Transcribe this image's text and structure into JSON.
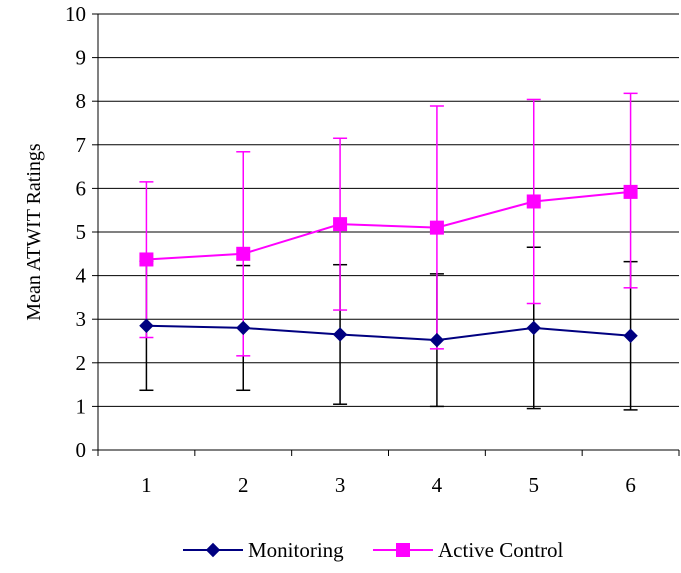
{
  "chart_data": {
    "type": "line",
    "title": "",
    "xlabel": "",
    "ylabel": "Mean ATWIT Ratings",
    "categories": [
      "1",
      "2",
      "3",
      "4",
      "5",
      "6"
    ],
    "ylim": [
      0,
      10
    ],
    "yticks": [
      "0",
      "1",
      "2",
      "3",
      "4",
      "5",
      "6",
      "7",
      "8",
      "9",
      "10"
    ],
    "grid": true,
    "legend_position": "bottom",
    "error_bars": true,
    "series": [
      {
        "name": "Monitoring",
        "color": "#000080",
        "error_color": "#000000",
        "marker": "diamond",
        "values": [
          2.85,
          2.8,
          2.65,
          2.52,
          2.8,
          2.62
        ],
        "error_low": [
          1.37,
          1.37,
          1.05,
          1.0,
          0.95,
          0.92
        ],
        "error_high": [
          4.33,
          4.23,
          4.25,
          4.04,
          4.65,
          4.32
        ]
      },
      {
        "name": "Active Control",
        "color": "#FF00FF",
        "error_color": "#FF00FF",
        "marker": "square",
        "values": [
          4.37,
          4.5,
          5.18,
          5.1,
          5.7,
          5.92
        ],
        "error_low": [
          2.58,
          2.16,
          3.21,
          2.32,
          3.36,
          3.72
        ],
        "error_high": [
          6.15,
          6.84,
          7.15,
          7.89,
          8.04,
          8.18
        ]
      }
    ]
  }
}
